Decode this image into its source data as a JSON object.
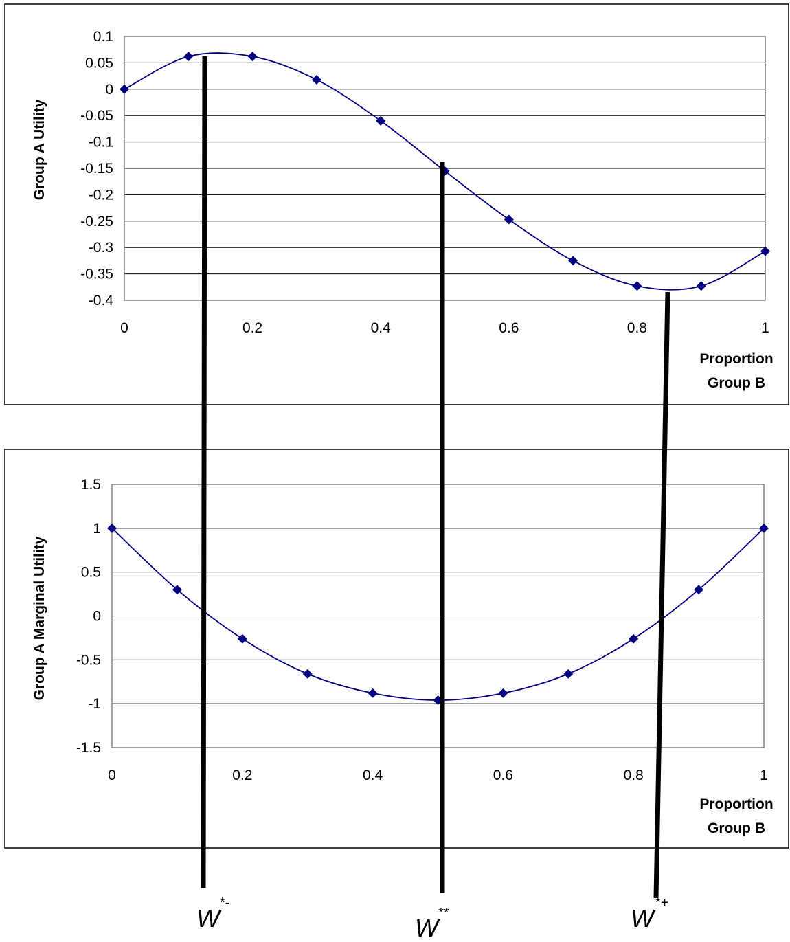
{
  "chart_data": [
    {
      "type": "line",
      "title": "",
      "ylabel": "Group A Utility",
      "xlabel_lines": [
        "Proportion",
        "Group B"
      ],
      "xlim": [
        0,
        1
      ],
      "ylim": [
        -0.4,
        0.1
      ],
      "x_ticks": [
        "0",
        "0.2",
        "0.4",
        "0.6",
        "0.8",
        "1"
      ],
      "y_ticks": [
        "0.1",
        "0.05",
        "0",
        "-0.05",
        "-0.1",
        "-0.15",
        "-0.2",
        "-0.25",
        "-0.3",
        "-0.35",
        "-0.4"
      ],
      "grid": "horizontal",
      "legend": "none",
      "series": [
        {
          "x": [
            0,
            0.1,
            0.2,
            0.3,
            0.4,
            0.5,
            0.6,
            0.7,
            0.8,
            0.9,
            1.0
          ],
          "values": [
            0,
            0.062,
            0.062,
            0.018,
            -0.06,
            -0.155,
            -0.247,
            -0.325,
            -0.373,
            -0.373,
            -0.307
          ]
        }
      ]
    },
    {
      "type": "line",
      "title": "",
      "ylabel": "Group A Marginal Utility",
      "xlabel_lines": [
        "Proportion",
        "Group B"
      ],
      "xlim": [
        0,
        1
      ],
      "ylim": [
        -1.5,
        1.5
      ],
      "x_ticks": [
        "0",
        "0.2",
        "0.4",
        "0.6",
        "0.8",
        "1"
      ],
      "y_ticks": [
        "1.5",
        "1",
        "0.5",
        "0",
        "-0.5",
        "-1",
        "-1.5"
      ],
      "grid": "horizontal",
      "legend": "none",
      "series": [
        {
          "x": [
            0,
            0.1,
            0.2,
            0.3,
            0.4,
            0.5,
            0.6,
            0.7,
            0.8,
            0.9,
            1.0
          ],
          "values": [
            1.0,
            0.3,
            -0.26,
            -0.66,
            -0.88,
            -0.96,
            -0.88,
            -0.66,
            -0.26,
            0.3,
            1.0
          ]
        }
      ]
    }
  ],
  "annotations": {
    "w_minus": {
      "base": "W",
      "sup": "*-"
    },
    "w_star": {
      "base": "W",
      "sup": "**"
    },
    "w_plus": {
      "base": "W",
      "sup": "*+"
    }
  },
  "colors": {
    "series": "#000080",
    "frame": "#000000",
    "grid": "#000000",
    "plot_border": "#808080",
    "marker_lines": "#000000"
  }
}
